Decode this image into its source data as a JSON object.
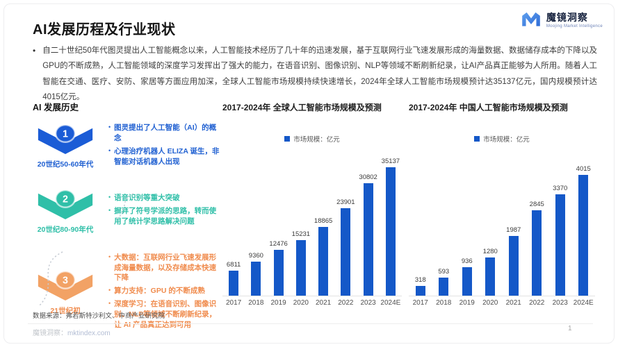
{
  "slide": {
    "title": "AI发展历程及行业现状",
    "page_number": "1"
  },
  "logo": {
    "name": "魔镜洞察",
    "subtitle": "Moojing Market Intelligence"
  },
  "intro": {
    "bullet": "•",
    "text": "自二十世纪50年代图灵提出人工智能概念以来，人工智能技术经历了几十年的迅速发展，基于互联网行业飞速发展形成的海量数据、数据储存成本的下降以及GPU的不断成熟，人工智能领域的深度学习发挥出了强大的能力，在语音识别、图像识别、NLP等领域不断刷新纪录，让AI产品真正能够为人所用。随着人工智能在交通、医疗、安防、家居等方面应用加深，全球人工智能市场规模持续快速增长，2024年全球人工智能市场规模预计达35137亿元，国内规模预计达4015亿元。"
  },
  "timeline": {
    "heading": "AI 发展历史",
    "stages": [
      {
        "number": "1",
        "era": "20世纪50-60年代",
        "color": "#1b5cd6",
        "text_color": "#2161d2",
        "bullets": [
          "图灵提出了人工智能（AI）的概念",
          "心理治疗机器人 ELIZA 诞生，非智能对话机器人出现"
        ]
      },
      {
        "number": "2",
        "era": "20世纪80-90年代",
        "color": "#2fbfa8",
        "text_color": "#2fbfa8",
        "bullets": [
          "语音识别等重大突破",
          "摒弃了符号学派的思路，转而使用了统计学思路解决问题"
        ]
      },
      {
        "number": "3",
        "era": "21世纪初",
        "color": "#f2a265",
        "text_color": "#f08c4e",
        "bullets": [
          "大数据：互联网行业飞速发展形成海量数据，以及存储成本快速下降",
          "算力支持：GPU 的不断成熟",
          "深度学习：在语音识别、图像识别、NLP等领域不断刷新纪录，让 AI 产品真正达到可用"
        ]
      }
    ],
    "source": "数据来源：弗若斯特沙利文、中商产业研究院"
  },
  "chart_data": [
    {
      "type": "bar",
      "title": "2017-2024年 全球人工智能市场规模及预测",
      "legend": "市场规模：亿元",
      "legend_position": "top-center",
      "grid": false,
      "categories": [
        "2017",
        "2018",
        "2019",
        "2020",
        "2021",
        "2022",
        "2023",
        "2024E"
      ],
      "values": [
        6811,
        9360,
        12476,
        15231,
        18865,
        23901,
        30802,
        35137
      ],
      "bar_color": "#1458c8",
      "ylabel": "亿元",
      "ylim": [
        0,
        37000
      ]
    },
    {
      "type": "bar",
      "title": "2017-2024年 中国人工智能市场规模及预测",
      "legend": "市场规模：亿元",
      "legend_position": "top-center",
      "grid": false,
      "categories": [
        "2017",
        "2018",
        "2019",
        "2020",
        "2021",
        "2022",
        "2023",
        "2024E"
      ],
      "values": [
        318,
        593,
        936,
        1280,
        1987,
        2845,
        3370,
        4015
      ],
      "bar_color": "#1458c8",
      "ylabel": "亿元",
      "ylim": [
        0,
        4500
      ]
    }
  ],
  "footer": {
    "brand": "魔镜洞察：",
    "url": "mktindex.com"
  }
}
